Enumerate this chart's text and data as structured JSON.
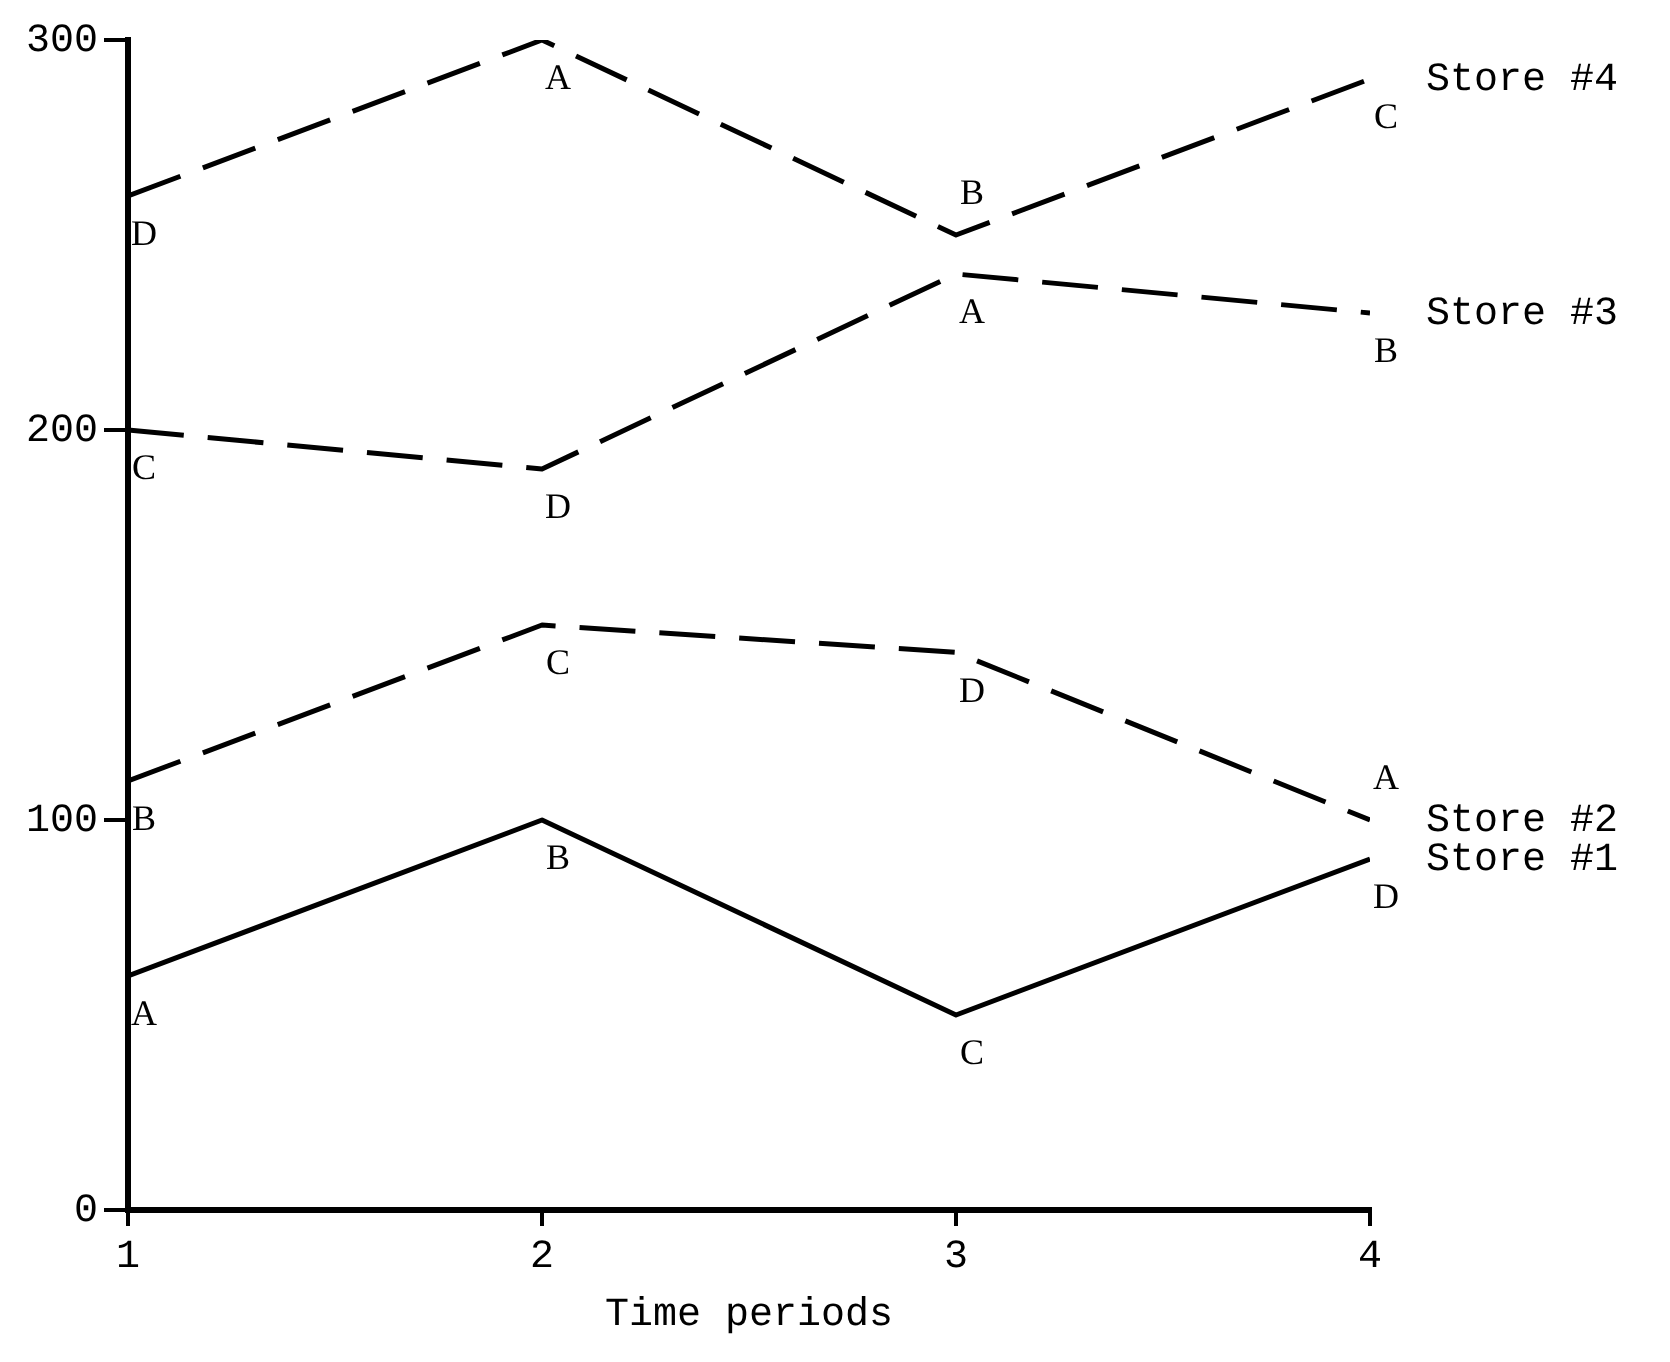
{
  "chart_data": {
    "type": "line",
    "xlabel": "Time periods",
    "x": [
      1,
      2,
      3,
      4
    ],
    "xlim": [
      1,
      4
    ],
    "xticks": [
      1,
      2,
      3,
      4
    ],
    "ylim": [
      0,
      300
    ],
    "yticks": [
      0,
      100,
      200,
      300
    ],
    "grid": false,
    "legend": false,
    "marker": "none",
    "series": [
      {
        "name": "Store #4",
        "color": "#000000",
        "line_style": "dashed",
        "values": [
          260,
          300,
          250,
          290
        ]
      },
      {
        "name": "Store #3",
        "color": "#000000",
        "line_style": "dashed",
        "values": [
          200,
          190,
          240,
          230
        ]
      },
      {
        "name": "Store #2",
        "color": "#000000",
        "line_style": "dashed",
        "values": [
          110,
          150,
          143,
          100
        ]
      },
      {
        "name": "Store #1",
        "color": "#000000",
        "line_style": "solid",
        "values": [
          60,
          100,
          50,
          90
        ]
      }
    ],
    "annotations": [
      {
        "text": "D",
        "x": 1,
        "y": 260
      },
      {
        "text": "A",
        "x": 2,
        "y": 300
      },
      {
        "text": "B",
        "x": 3,
        "y": 250
      },
      {
        "text": "C",
        "x": 4,
        "y": 290
      },
      {
        "text": "C",
        "x": 1,
        "y": 200
      },
      {
        "text": "D",
        "x": 2,
        "y": 190
      },
      {
        "text": "A",
        "x": 3,
        "y": 240
      },
      {
        "text": "B",
        "x": 4,
        "y": 230
      },
      {
        "text": "B",
        "x": 1,
        "y": 110
      },
      {
        "text": "C",
        "x": 2,
        "y": 150
      },
      {
        "text": "D",
        "x": 3,
        "y": 143
      },
      {
        "text": "A",
        "x": 4,
        "y": 100
      },
      {
        "text": "A",
        "x": 1,
        "y": 60
      },
      {
        "text": "B",
        "x": 2,
        "y": 100
      },
      {
        "text": "C",
        "x": 3,
        "y": 50
      },
      {
        "text": "D",
        "x": 4,
        "y": 90
      }
    ]
  }
}
